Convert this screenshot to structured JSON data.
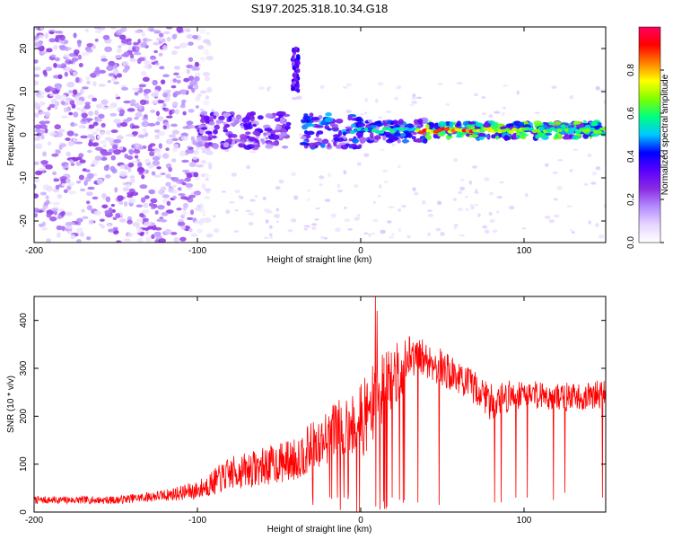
{
  "title": "S197.2025.318.10.34.G18",
  "chart_data": [
    {
      "type": "heatmap",
      "name": "spectrogram",
      "xlabel": "Height of straight line (km)",
      "ylabel": "Frequency (Hz)",
      "xlim": [
        -200,
        150
      ],
      "ylim": [
        -25,
        25
      ],
      "xticks": [
        -200,
        -100,
        0,
        100
      ],
      "xtick_labels": [
        "-200",
        "-100",
        "0",
        "100"
      ],
      "yticks": [
        -20,
        -10,
        0,
        10,
        20
      ],
      "ytick_labels": [
        "-20",
        "-10",
        "0",
        "10",
        "20"
      ],
      "colorbar": {
        "label": "Normalized spectral amplitude",
        "range": [
          0,
          1
        ],
        "ticks": [
          0.0,
          0.2,
          0.4,
          0.6,
          0.8
        ],
        "tick_labels": [
          "0.0",
          "0.2",
          "0.4",
          "0.6",
          "0.8"
        ],
        "colors": [
          "#ffffff",
          "#e6d6ff",
          "#b48cff",
          "#8a2be2",
          "#5a00ff",
          "#0000ff",
          "#00c8ff",
          "#00ff80",
          "#80ff00",
          "#ffff00",
          "#ff8000",
          "#ff0000",
          "#ff0060"
        ]
      },
      "features": [
        {
          "region": "broadband noise",
          "x_range": [
            -200,
            -100
          ],
          "freq_range": [
            -25,
            25
          ],
          "amplitude": 0.15
        },
        {
          "region": "signal band",
          "x_range": [
            -100,
            150
          ],
          "center_freq": 1,
          "amplitude": 0.9
        },
        {
          "region": "burst",
          "x_range": [
            -42,
            -38
          ],
          "freq_range": [
            10,
            20
          ],
          "amplitude": 0.35
        }
      ]
    },
    {
      "type": "line",
      "name": "snr",
      "xlabel": "Height of straight line (km)",
      "ylabel": "SNR (10 * v/v)",
      "xlim": [
        -200,
        150
      ],
      "ylim": [
        0,
        450
      ],
      "xticks": [
        -200,
        -100,
        0,
        100
      ],
      "xtick_labels": [
        "-200",
        "-100",
        "0",
        "100"
      ],
      "yticks": [
        0,
        100,
        200,
        300,
        400
      ],
      "ytick_labels": [
        "0",
        "100",
        "200",
        "300",
        "400"
      ],
      "color": "#ff0000",
      "envelope": {
        "x": [
          -200,
          -150,
          -120,
          -100,
          -80,
          -60,
          -40,
          -20,
          -10,
          0,
          10,
          20,
          30,
          40,
          50,
          60,
          70,
          80,
          90,
          100,
          120,
          140,
          150
        ],
        "mean": [
          25,
          25,
          35,
          45,
          80,
          95,
          110,
          160,
          180,
          190,
          230,
          280,
          320,
          320,
          300,
          280,
          260,
          230,
          240,
          250,
          240,
          240,
          250
        ],
        "amp": [
          8,
          8,
          12,
          20,
          35,
          40,
          45,
          60,
          70,
          80,
          90,
          70,
          50,
          40,
          40,
          35,
          35,
          40,
          35,
          30,
          30,
          30,
          30
        ]
      },
      "spikes": [
        {
          "x": 9,
          "value": 450
        },
        {
          "x": 10,
          "value": 420
        }
      ],
      "dips": [
        {
          "x": 35,
          "value": 20
        },
        {
          "x": 48,
          "value": 15
        },
        {
          "x": 82,
          "value": 20
        },
        {
          "x": 86,
          "value": 20
        },
        {
          "x": 95,
          "value": 30
        },
        {
          "x": 102,
          "value": 30
        },
        {
          "x": 118,
          "value": 25
        },
        {
          "x": 125,
          "value": 40
        },
        {
          "x": 148,
          "value": 30
        }
      ]
    }
  ]
}
